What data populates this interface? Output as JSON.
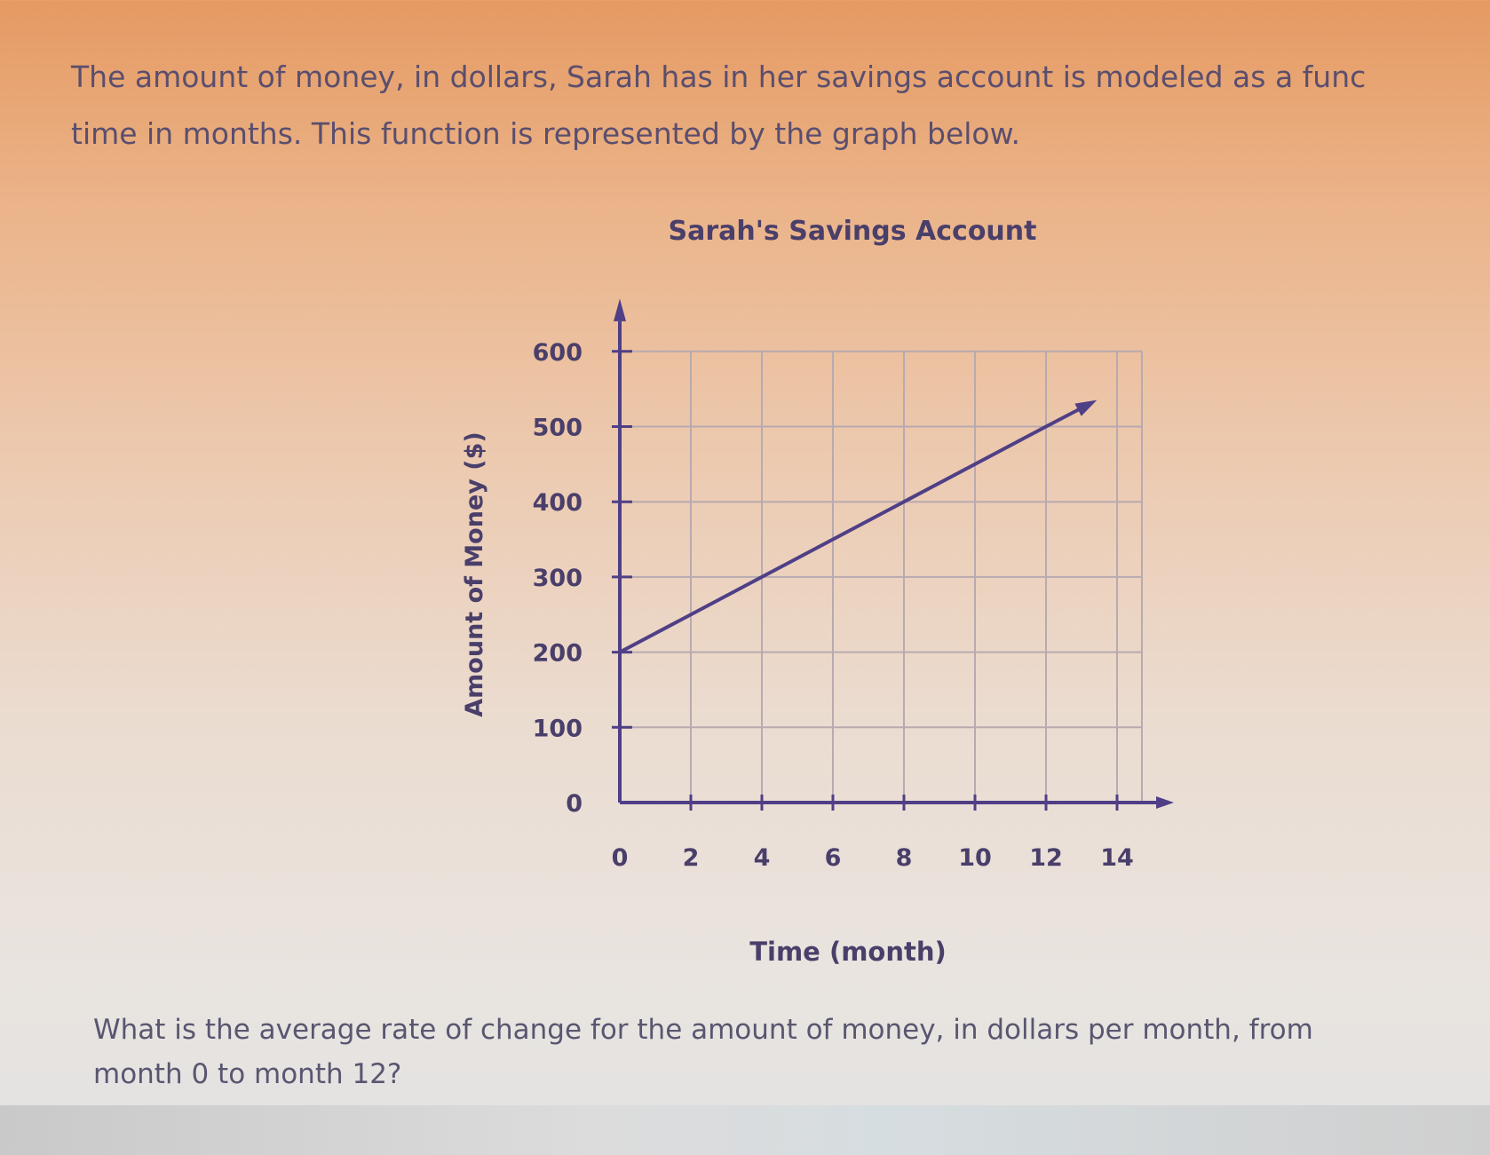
{
  "intro_text": "The amount of money, in dollars, Sarah has in her savings account is modeled as a func time in months. This function is represented by the graph below.",
  "intro_line1": "The amount of money, in dollars, Sarah has in her savings account is modeled as a func",
  "intro_line2": "time in months. This function is represented by the graph below.",
  "question_line1": "What is the average rate of change for the amount of money, in dollars per month, from",
  "question_line2": "month 0 to month 12?",
  "chart_data": {
    "type": "line",
    "title": "Sarah's Savings Account",
    "xlabel": "Time (month)",
    "ylabel": "Amount of Money ($)",
    "xlim": [
      0,
      14
    ],
    "ylim": [
      0,
      600
    ],
    "xticks": [
      "0",
      "2",
      "4",
      "6",
      "8",
      "10",
      "12",
      "14"
    ],
    "yticks": [
      "0",
      "100",
      "200",
      "300",
      "400",
      "500",
      "600"
    ],
    "grid": true,
    "series": [
      {
        "x": [
          0,
          4,
          8,
          12,
          13.3
        ],
        "y": [
          200,
          300,
          400,
          500,
          532
        ],
        "arrow_end": true
      }
    ],
    "colors": {
      "axis": "#4f3f86",
      "line": "#4f3f86",
      "grid": "#b8aab0"
    }
  }
}
